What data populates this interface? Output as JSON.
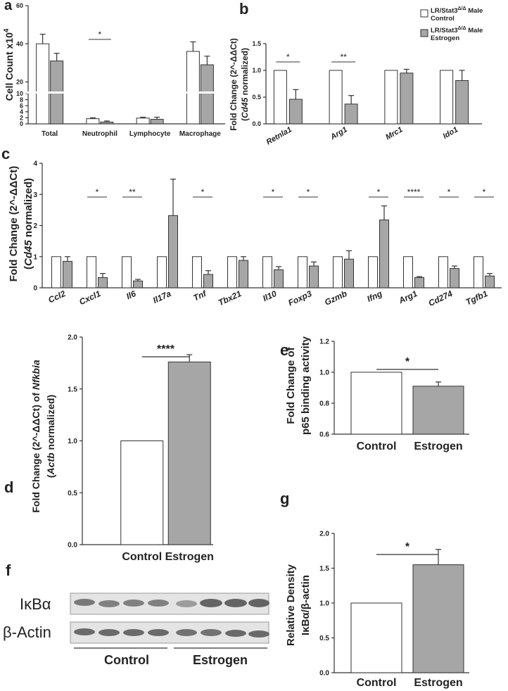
{
  "chart_data": [
    {
      "type": "bar",
      "panel": "a",
      "ylabel": "Cell Count x10",
      "ylabel_exp": "4",
      "categories": [
        "Total",
        "Neutrophil",
        "Lymphocyte",
        "Macrophage"
      ],
      "series": [
        {
          "color": "#ffffff",
          "values": [
            40,
            1.7,
            1.9,
            36
          ],
          "errors": [
            5,
            0.3,
            0.3,
            5
          ]
        },
        {
          "color": "#a6a6a6",
          "values": [
            31,
            0.6,
            1.5,
            29
          ],
          "errors": [
            4,
            0.35,
            0.7,
            4.5
          ]
        }
      ],
      "significance": [
        null,
        "*",
        null,
        null
      ],
      "ylim": [
        0,
        60
      ],
      "ybreak": [
        10,
        15
      ],
      "yticks": [
        0,
        2,
        4,
        6,
        8,
        10,
        20,
        40,
        60
      ]
    },
    {
      "type": "bar",
      "panel": "b",
      "ylabel": [
        [
          "Fold Change (2^-ΔΔCt)"
        ],
        [
          "(",
          "Cd45",
          " normalized)"
        ]
      ],
      "categories": [
        "Retnla1",
        "Arg1",
        "Mrc1",
        "Ido1"
      ],
      "italic_categories": true,
      "legend_prefix": [
        "LR/Stat3",
        "Δ/Δ",
        " Male"
      ],
      "series": [
        {
          "name": "Control",
          "color": "#ffffff",
          "values": [
            1,
            1,
            1,
            1
          ]
        },
        {
          "name": "Estrogen",
          "color": "#a6a6a6",
          "values": [
            0.46,
            0.37,
            0.95,
            0.81
          ],
          "errors": [
            0.18,
            0.16,
            0.07,
            0.19
          ]
        }
      ],
      "significance": [
        "*",
        "**",
        null,
        null
      ],
      "ylim": [
        0,
        1.5
      ],
      "yticks": [
        {
          "value": 0,
          "label": "0.0"
        },
        {
          "value": 0.5,
          "label": "0.5"
        },
        {
          "value": 1,
          "label": "1.0"
        },
        {
          "value": 1.5,
          "label": "1.5"
        }
      ]
    },
    {
      "type": "bar",
      "panel": "c",
      "ylabel": [
        [
          "Fold Change (2^-ΔΔCt)"
        ],
        [
          "(",
          "Cd45",
          " normalized)"
        ]
      ],
      "categories": [
        "Ccl2",
        "Cxcl1",
        "Il6",
        "Il17a",
        "Tnf",
        "Tbx21",
        "Il10",
        "Foxp3",
        "Gzmb",
        "Ifng",
        "Arg1",
        "Cd274",
        "Tgfb1"
      ],
      "italic_categories": true,
      "series": [
        {
          "color": "#ffffff",
          "values": [
            1,
            1,
            1,
            1,
            1,
            1,
            1,
            1,
            1,
            1,
            1,
            1,
            1
          ]
        },
        {
          "color": "#a6a6a6",
          "values": [
            0.85,
            0.33,
            0.22,
            2.32,
            0.43,
            0.88,
            0.58,
            0.7,
            0.92,
            2.18,
            0.33,
            0.62,
            0.38
          ],
          "errors": [
            0.15,
            0.13,
            0.05,
            1.17,
            0.12,
            0.12,
            0.1,
            0.13,
            0.27,
            0.45,
            0.03,
            0.08,
            0.08
          ]
        }
      ],
      "significance": [
        null,
        "*",
        "**",
        null,
        "*",
        null,
        "*",
        "*",
        null,
        "*",
        "****",
        "*",
        "*"
      ],
      "ylim": [
        0,
        4
      ],
      "yticks": [
        0,
        1,
        2,
        3,
        4
      ]
    },
    {
      "type": "bar",
      "panel": "d",
      "ylabel": [
        [
          "Fold Change (2^-ΔΔCt) of ",
          "Nfkbia"
        ],
        [
          "(",
          "Actb",
          " normalized)"
        ]
      ],
      "categories": [
        "Control",
        "Estrogen"
      ],
      "values": [
        1,
        1.76
      ],
      "errors": [
        null,
        0.07
      ],
      "colors": [
        "#ffffff",
        "#a6a6a6"
      ],
      "significance": "****",
      "ylim": [
        0,
        2
      ],
      "yticks": [
        {
          "value": 0,
          "label": "0.0"
        },
        {
          "value": 0.5,
          "label": "0.5"
        },
        {
          "value": 1,
          "label": "1.0"
        },
        {
          "value": 1.5,
          "label": "1.5"
        },
        {
          "value": 2,
          "label": "2.0"
        }
      ]
    },
    {
      "type": "bar",
      "panel": "e",
      "ylabel": [
        [
          "Fold Change of"
        ],
        [
          "p65 binding activity"
        ]
      ],
      "categories": [
        "Control",
        "Estrogen"
      ],
      "values": [
        1,
        0.91
      ],
      "errors": [
        null,
        0.027
      ],
      "colors": [
        "#ffffff",
        "#a6a6a6"
      ],
      "significance": "*",
      "ylim": [
        0.6,
        1.2
      ],
      "yticks": [
        0.6,
        0.8,
        {
          "value": 1,
          "label": "1.0"
        },
        1.2
      ]
    },
    {
      "type": "bar",
      "panel": "g",
      "ylabel": [
        [
          "Relative Density"
        ],
        [
          "IκBα/β-actin"
        ]
      ],
      "categories": [
        "Control",
        "Estrogen"
      ],
      "values": [
        1,
        1.55
      ],
      "errors": [
        null,
        0.22
      ],
      "colors": [
        "#ffffff",
        "#a6a6a6"
      ],
      "significance": "*",
      "ylim": [
        0,
        2
      ],
      "yticks": [
        {
          "value": 0,
          "label": "0.0"
        },
        {
          "value": 0.5,
          "label": "0.5"
        },
        {
          "value": 1,
          "label": "1.0"
        },
        {
          "value": 1.5,
          "label": "1.5"
        },
        {
          "value": 2,
          "label": "2.0"
        }
      ]
    }
  ],
  "blot": {
    "panel": "f",
    "rows": [
      "IκBα",
      "β-Actin"
    ],
    "groups": [
      "Control",
      "Estrogen"
    ]
  }
}
